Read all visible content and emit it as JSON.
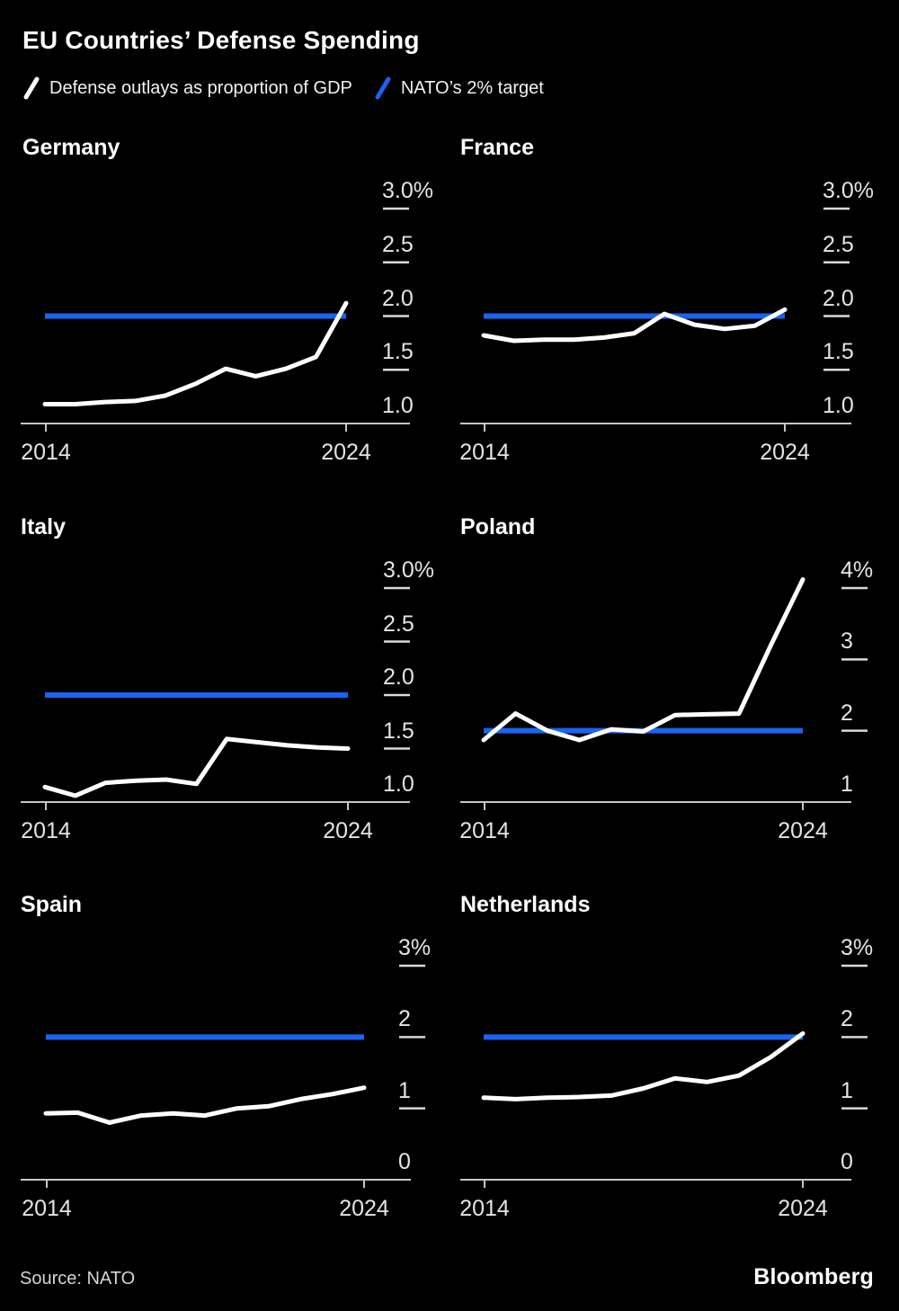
{
  "header": {
    "title": "EU Countries’ Defense Spending",
    "legend": [
      {
        "label": "Defense outlays as proportion of GDP",
        "color": "#ffffff"
      },
      {
        "label": "NATO’s 2% target",
        "color": "#1b63f0"
      }
    ]
  },
  "colors": {
    "background": "#000000",
    "series_line": "#ffffff",
    "target_line": "#1b63f0",
    "axis_line": "#c6c6c6",
    "tick_dash": "#d9d9d9",
    "tick_label": "#e4e4e4"
  },
  "footer": {
    "source": "Source: NATO",
    "brand": "Bloomberg"
  },
  "chart_data": [
    {
      "type": "line",
      "title": "Germany",
      "x": [
        2014,
        2015,
        2016,
        2017,
        2018,
        2019,
        2020,
        2021,
        2022,
        2023,
        2024
      ],
      "values": [
        1.18,
        1.18,
        1.2,
        1.21,
        1.26,
        1.37,
        1.51,
        1.44,
        1.51,
        1.62,
        2.12
      ],
      "target": 2.0,
      "ylim": [
        1.0,
        3.0
      ],
      "yticks": [
        3.0,
        2.5,
        2.0,
        1.5,
        1.0
      ],
      "ytick_labels": [
        "3.0%",
        "2.5",
        "2.0",
        "1.5",
        "1.0"
      ],
      "xtick_labels": [
        "2014",
        "2024"
      ]
    },
    {
      "type": "line",
      "title": "France",
      "x": [
        2014,
        2015,
        2016,
        2017,
        2018,
        2019,
        2020,
        2021,
        2022,
        2023,
        2024
      ],
      "values": [
        1.82,
        1.77,
        1.78,
        1.78,
        1.8,
        1.84,
        2.02,
        1.92,
        1.88,
        1.91,
        2.06
      ],
      "target": 2.0,
      "ylim": [
        1.0,
        3.0
      ],
      "yticks": [
        3.0,
        2.5,
        2.0,
        1.5,
        1.0
      ],
      "ytick_labels": [
        "3.0%",
        "2.5",
        "2.0",
        "1.5",
        "1.0"
      ],
      "xtick_labels": [
        "2014",
        "2024"
      ]
    },
    {
      "type": "line",
      "title": "Italy",
      "x": [
        2014,
        2015,
        2016,
        2017,
        2018,
        2019,
        2020,
        2021,
        2022,
        2023,
        2024
      ],
      "values": [
        1.14,
        1.06,
        1.18,
        1.2,
        1.21,
        1.17,
        1.59,
        1.56,
        1.53,
        1.51,
        1.5
      ],
      "target": 2.0,
      "ylim": [
        1.0,
        3.0
      ],
      "yticks": [
        3.0,
        2.5,
        2.0,
        1.5,
        1.0
      ],
      "ytick_labels": [
        "3.0%",
        "2.5",
        "2.0",
        "1.5",
        "1.0"
      ],
      "xtick_labels": [
        "2014",
        "2024"
      ]
    },
    {
      "type": "line",
      "title": "Poland",
      "x": [
        2014,
        2015,
        2016,
        2017,
        2018,
        2019,
        2020,
        2021,
        2022,
        2023,
        2024
      ],
      "values": [
        1.87,
        2.24,
        2.0,
        1.87,
        2.02,
        1.99,
        2.22,
        2.23,
        2.24,
        3.2,
        4.12
      ],
      "target": 2.0,
      "ylim": [
        1.0,
        4.0
      ],
      "yticks": [
        4.0,
        3.0,
        2.0,
        1.0
      ],
      "ytick_labels": [
        "4%",
        "3",
        "2",
        "1"
      ],
      "xtick_labels": [
        "2014",
        "2024"
      ]
    },
    {
      "type": "line",
      "title": "Spain",
      "x": [
        2014,
        2015,
        2016,
        2017,
        2018,
        2019,
        2020,
        2021,
        2022,
        2023,
        2024
      ],
      "values": [
        0.93,
        0.94,
        0.8,
        0.9,
        0.93,
        0.9,
        1.0,
        1.03,
        1.13,
        1.2,
        1.29
      ],
      "target": 2.0,
      "ylim": [
        0.0,
        3.0
      ],
      "yticks": [
        3.0,
        2.0,
        1.0,
        0.0
      ],
      "ytick_labels": [
        "3%",
        "2",
        "1",
        "0"
      ],
      "xtick_labels": [
        "2014",
        "2024"
      ]
    },
    {
      "type": "line",
      "title": "Netherlands",
      "x": [
        2014,
        2015,
        2016,
        2017,
        2018,
        2019,
        2020,
        2021,
        2022,
        2023,
        2024
      ],
      "values": [
        1.15,
        1.13,
        1.15,
        1.16,
        1.18,
        1.28,
        1.42,
        1.37,
        1.46,
        1.72,
        2.05
      ],
      "target": 2.0,
      "ylim": [
        0.0,
        3.0
      ],
      "yticks": [
        3.0,
        2.0,
        1.0,
        0.0
      ],
      "ytick_labels": [
        "3%",
        "2",
        "1",
        "0"
      ],
      "xtick_labels": [
        "2014",
        "2024"
      ]
    }
  ]
}
